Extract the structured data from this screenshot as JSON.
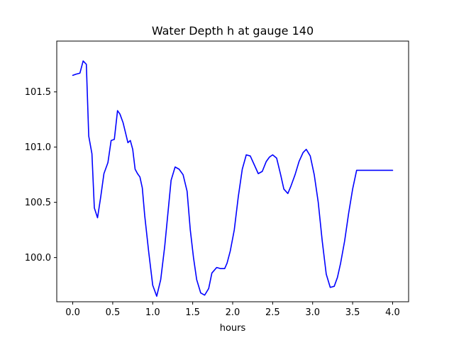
{
  "chart_data": {
    "type": "line",
    "title": "Water Depth h at gauge 140",
    "xlabel": "hours",
    "ylabel": "",
    "xlim": [
      -0.2,
      4.2
    ],
    "ylim": [
      99.6,
      101.96
    ],
    "xticks": [
      {
        "value": 0.0,
        "label": "0.0"
      },
      {
        "value": 0.5,
        "label": "0.5"
      },
      {
        "value": 1.0,
        "label": "1.0"
      },
      {
        "value": 1.5,
        "label": "1.5"
      },
      {
        "value": 2.0,
        "label": "2.0"
      },
      {
        "value": 2.5,
        "label": "2.5"
      },
      {
        "value": 3.0,
        "label": "3.0"
      },
      {
        "value": 3.5,
        "label": "3.5"
      },
      {
        "value": 4.0,
        "label": "4.0"
      }
    ],
    "yticks": [
      {
        "value": 100.0,
        "label": "100.0"
      },
      {
        "value": 100.5,
        "label": "100.5"
      },
      {
        "value": 101.0,
        "label": "101.0"
      },
      {
        "value": 101.5,
        "label": "101.5"
      }
    ],
    "grid": false,
    "series": [
      {
        "color": "#0000ff",
        "x": [
          0.0,
          0.04,
          0.09,
          0.13,
          0.17,
          0.2,
          0.24,
          0.27,
          0.31,
          0.35,
          0.39,
          0.44,
          0.48,
          0.52,
          0.56,
          0.59,
          0.63,
          0.66,
          0.69,
          0.72,
          0.75,
          0.78,
          0.81,
          0.84,
          0.87,
          0.9,
          0.95,
          1.0,
          1.05,
          1.1,
          1.15,
          1.19,
          1.23,
          1.28,
          1.33,
          1.38,
          1.43,
          1.47,
          1.51,
          1.55,
          1.6,
          1.65,
          1.7,
          1.74,
          1.8,
          1.85,
          1.9,
          1.93,
          1.97,
          2.02,
          2.07,
          2.12,
          2.17,
          2.22,
          2.27,
          2.32,
          2.37,
          2.42,
          2.46,
          2.5,
          2.55,
          2.6,
          2.64,
          2.69,
          2.73,
          2.78,
          2.83,
          2.88,
          2.92,
          2.97,
          3.02,
          3.07,
          3.12,
          3.17,
          3.22,
          3.27,
          3.31,
          3.35,
          3.4,
          3.45,
          3.5,
          3.55,
          3.6,
          3.65,
          3.7,
          3.75,
          3.8,
          3.85,
          3.9,
          3.95,
          4.0
        ],
        "values": [
          101.65,
          101.66,
          101.67,
          101.78,
          101.75,
          101.1,
          100.94,
          100.45,
          100.36,
          100.55,
          100.76,
          100.86,
          101.06,
          101.07,
          101.33,
          101.3,
          101.22,
          101.13,
          101.04,
          101.06,
          100.98,
          100.8,
          100.76,
          100.73,
          100.63,
          100.38,
          100.05,
          99.75,
          99.65,
          99.8,
          100.1,
          100.4,
          100.7,
          100.82,
          100.8,
          100.75,
          100.6,
          100.25,
          100.0,
          99.8,
          99.68,
          99.66,
          99.72,
          99.86,
          99.91,
          99.9,
          99.9,
          99.95,
          100.06,
          100.25,
          100.55,
          100.8,
          100.93,
          100.92,
          100.84,
          100.76,
          100.78,
          100.87,
          100.91,
          100.93,
          100.9,
          100.75,
          100.62,
          100.58,
          100.65,
          100.75,
          100.87,
          100.95,
          100.98,
          100.92,
          100.75,
          100.5,
          100.15,
          99.85,
          99.73,
          99.74,
          99.82,
          99.95,
          100.15,
          100.4,
          100.62,
          100.79,
          100.79,
          100.79,
          100.79,
          100.79,
          100.79,
          100.79,
          100.79,
          100.79,
          100.79
        ]
      }
    ]
  }
}
